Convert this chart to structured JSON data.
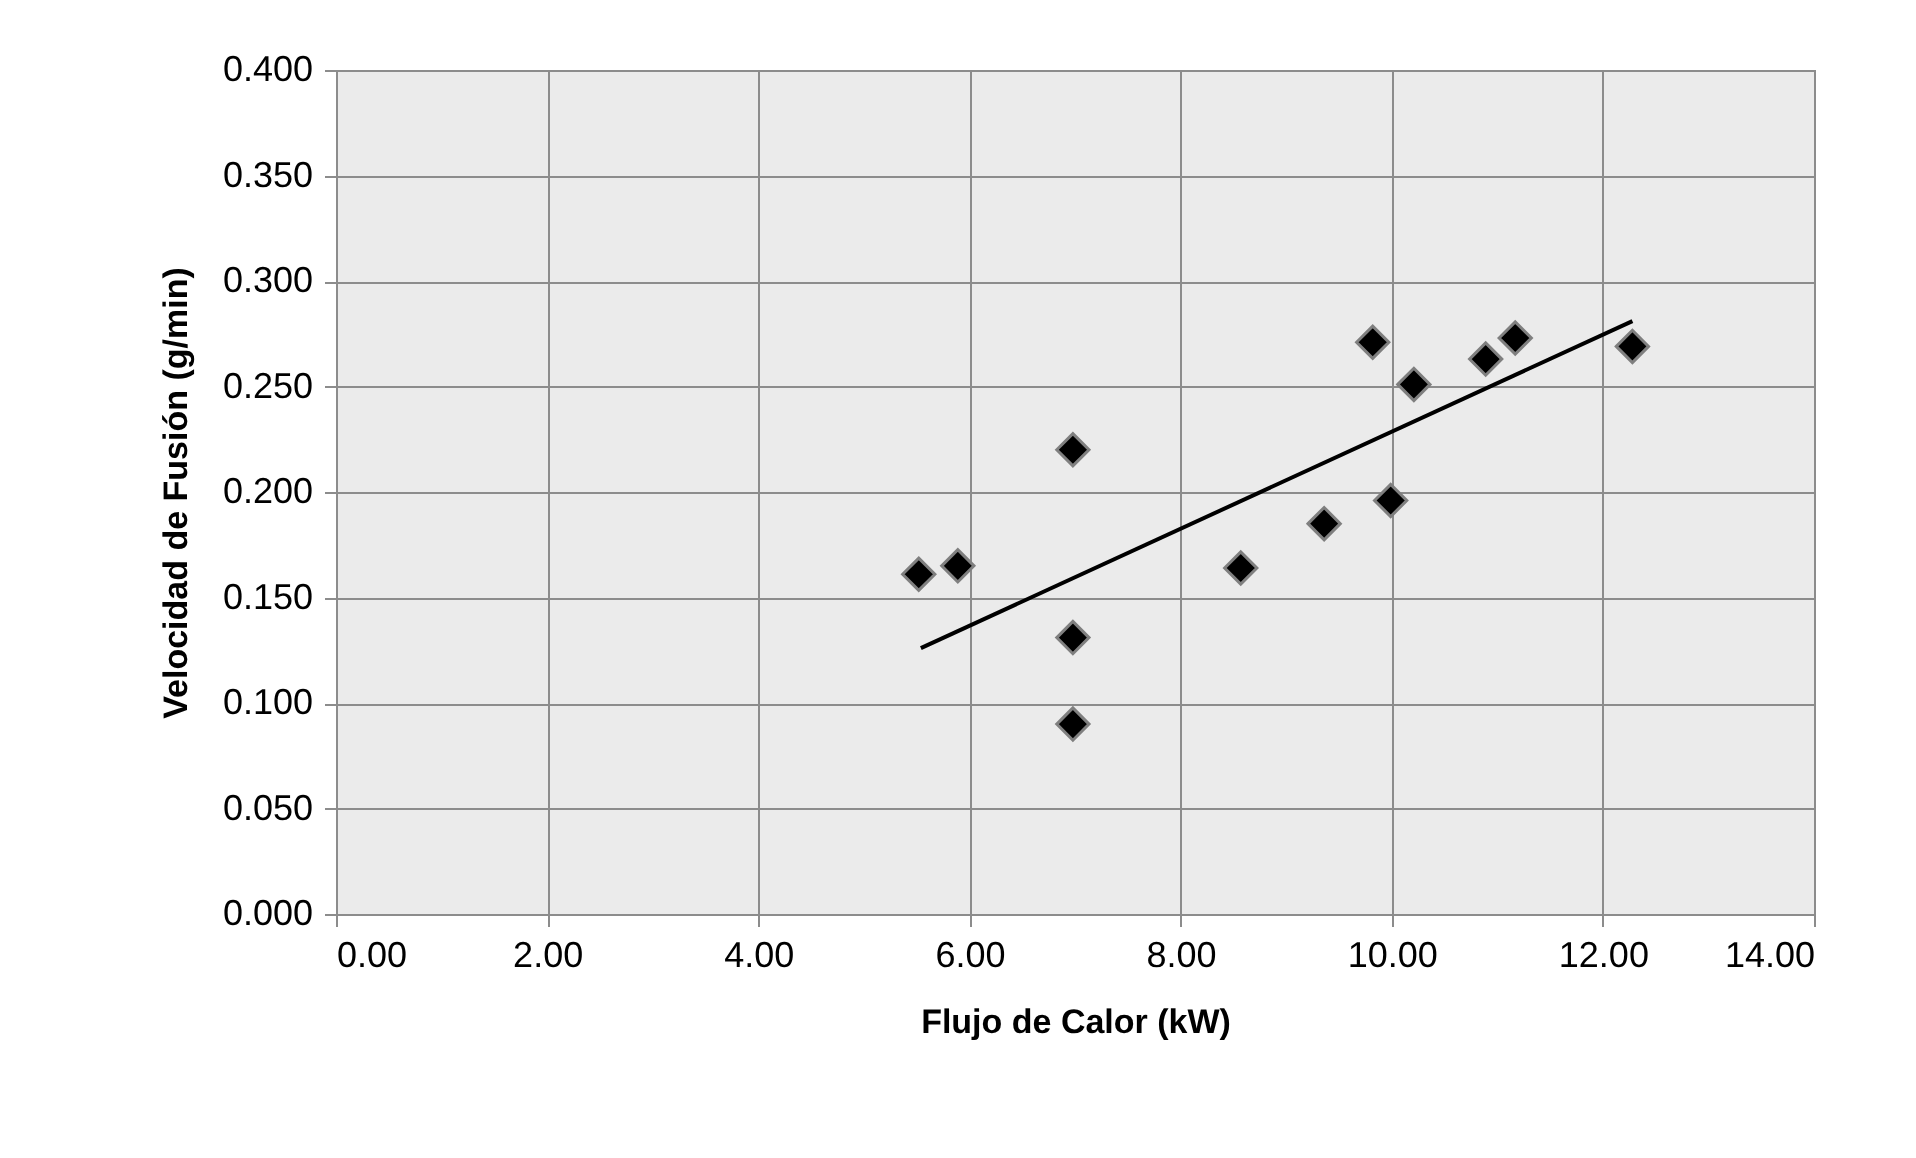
{
  "chart_data": {
    "type": "scatter",
    "xlabel": "Flujo de Calor (kW)",
    "ylabel": "Velocidad de Fusión (g/min)",
    "xlim": [
      0,
      14
    ],
    "ylim": [
      0,
      0.4
    ],
    "xticks": [
      {
        "value": 0,
        "label": "0.00"
      },
      {
        "value": 2,
        "label": "2.00"
      },
      {
        "value": 4,
        "label": "4.00"
      },
      {
        "value": 6,
        "label": "6.00"
      },
      {
        "value": 8,
        "label": "8.00"
      },
      {
        "value": 10,
        "label": "10.00"
      },
      {
        "value": 12,
        "label": "12.00"
      },
      {
        "value": 14,
        "label": "14.00"
      }
    ],
    "yticks": [
      {
        "value": 0,
        "label": "0.000"
      },
      {
        "value": 0.05,
        "label": "0.050"
      },
      {
        "value": 0.1,
        "label": "0.100"
      },
      {
        "value": 0.15,
        "label": "0.150"
      },
      {
        "value": 0.2,
        "label": "0.200"
      },
      {
        "value": 0.25,
        "label": "0.250"
      },
      {
        "value": 0.3,
        "label": "0.300"
      },
      {
        "value": 0.35,
        "label": "0.350"
      },
      {
        "value": 0.4,
        "label": "0.400"
      }
    ],
    "grid": true,
    "series": [
      {
        "type": "scatter",
        "marker": "diamond",
        "color": "#000000",
        "x": [
          5.52,
          5.89,
          6.98,
          6.98,
          6.98,
          8.57,
          9.36,
          9.99,
          9.82,
          10.21,
          10.89,
          11.17,
          12.28
        ],
        "values": [
          0.161,
          0.165,
          0.22,
          0.131,
          0.09,
          0.164,
          0.185,
          0.196,
          0.271,
          0.251,
          0.263,
          0.273,
          0.269
        ]
      },
      {
        "type": "line",
        "line_style": "solid",
        "color": "#000000",
        "x": [
          5.54,
          12.28
        ],
        "values": [
          0.126,
          0.281
        ]
      }
    ]
  }
}
